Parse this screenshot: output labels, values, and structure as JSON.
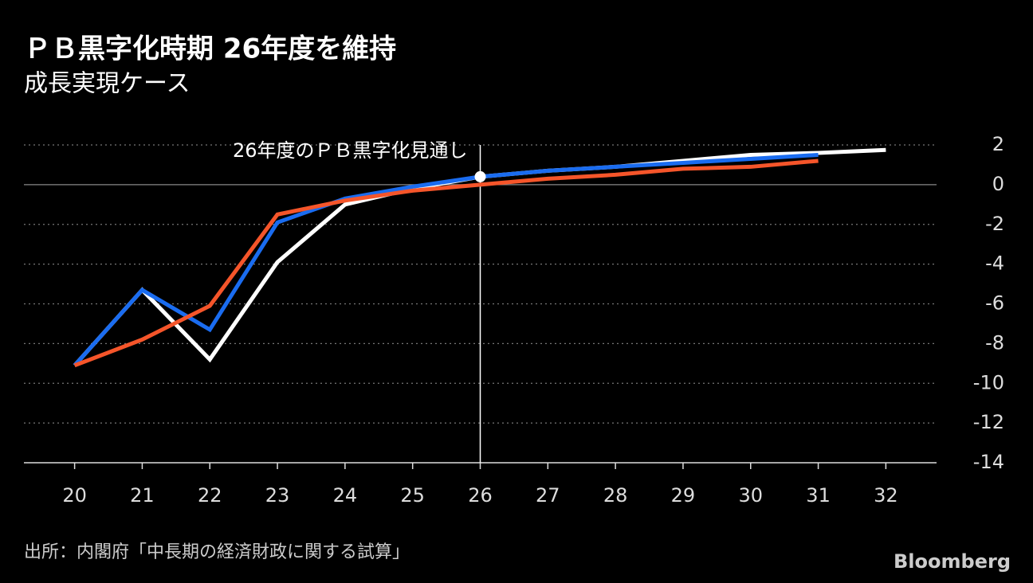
{
  "chart_data": {
    "type": "line",
    "title": "ＰＢ黒字化時期 26年度を維持",
    "subtitle": "成長実現ケース",
    "source": "出所：内閣府「中長期の経済財政に関する試算」",
    "brand": "Bloomberg",
    "annotation": {
      "text": "26年度のＰＢ黒字化見通し",
      "x": 26,
      "y": 0.4
    },
    "x": [
      20,
      21,
      22,
      23,
      24,
      25,
      26,
      27,
      28,
      29,
      30,
      31,
      32
    ],
    "xlim": [
      19.25,
      32.75
    ],
    "xticks": [
      20,
      21,
      22,
      23,
      24,
      25,
      26,
      27,
      28,
      29,
      30,
      31,
      32
    ],
    "ylim": [
      -14,
      2
    ],
    "yticks": [
      2,
      0,
      -2,
      -4,
      -6,
      -8,
      -10,
      -12,
      -14
    ],
    "grid": true,
    "series": [
      {
        "color": "#ffffff",
        "values": [
          -9.1,
          -5.3,
          -8.8,
          -3.9,
          -1.0,
          -0.2,
          0.4,
          0.7,
          0.9,
          1.2,
          1.5,
          1.6,
          1.75
        ]
      },
      {
        "color": "#1a6cf0",
        "values": [
          -9.1,
          -5.3,
          -7.3,
          -1.9,
          -0.7,
          -0.1,
          0.4,
          0.7,
          0.9,
          1.1,
          1.3,
          1.5,
          null
        ]
      },
      {
        "color": "#f5552a",
        "values": [
          -9.1,
          -7.8,
          -6.1,
          -1.5,
          -0.8,
          -0.3,
          0.0,
          0.3,
          0.5,
          0.8,
          0.9,
          1.2,
          null
        ]
      }
    ]
  }
}
